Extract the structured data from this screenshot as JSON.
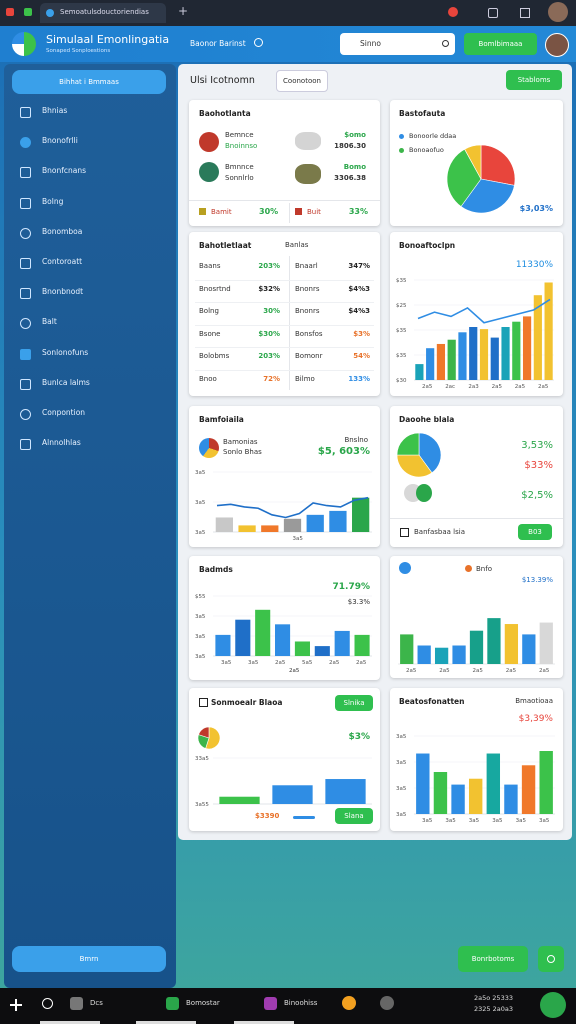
{
  "browser": {
    "tab_title": "Semoatulsdouctoriendias"
  },
  "header": {
    "title": "Simulaal Emonlingatia",
    "subtitle": "Sonaped Sonploestions",
    "nav_link": "Baonor Barinst",
    "search_placeholder": "Sinno",
    "button": "Bomlbimaaa"
  },
  "sidebar": {
    "top_button": "Bihhat i Bmmaas",
    "items": [
      "Bhnias",
      "Bnonofrlli",
      "Bnonfcnans",
      "Bolng",
      "Bonomboa",
      "Contoroatt",
      "Bnonbnodt",
      "Balt",
      "Sonlonofuns",
      "Bunlca lalms",
      "Conpontion",
      "Alnnolhlas"
    ],
    "bottom_button": "Bmrn"
  },
  "main": {
    "title": "Ulsi Icotnomn",
    "button_secondary": "Coonotoon",
    "button_primary": "Stabloms",
    "cards": [
      {
        "title": "Baohotlanta",
        "rows": [
          {
            "name": "Bemnce",
            "sub": "Bnoinnso",
            "value": "$omo",
            "value2": "1806.30"
          },
          {
            "name": "Bmnnce",
            "sub": "Sonnlrlo",
            "value": "Bomo",
            "value2": "3306.38"
          }
        ],
        "stats": [
          {
            "label": "Bamit",
            "value": "30%"
          },
          {
            "label": "Buit",
            "value": "33%"
          }
        ]
      },
      {
        "title": "Bastofauta",
        "legend": [
          "Bonoorle ddaa",
          "Bonoaofuo"
        ],
        "legend_colors": [
          "#2f8de4",
          "#3cb54a"
        ],
        "value": "$3,03%",
        "chart": {
          "pie": {
            "values": [
              28,
              32,
              32,
              8
            ],
            "colors": [
              "#e8453c",
              "#2f8de4",
              "#3cc24a",
              "#f2c230"
            ]
          }
        }
      },
      {
        "title": "Bahotletlaat",
        "header": "Banlas",
        "rows": [
          {
            "cells": [
              "Baans",
              "203%",
              "Bnaarl",
              "347%"
            ],
            "colors": [
              "#2aa64a",
              "#222"
            ]
          },
          {
            "cells": [
              "Bnosrtnd",
              "$32%",
              "Bnonrs",
              "$4%3"
            ],
            "colors": [
              "#222",
              "#222"
            ]
          },
          {
            "cells": [
              "Bolng",
              "30%",
              "Bnonrs",
              "$4%3"
            ],
            "colors": [
              "#2aa64a",
              "#222"
            ]
          },
          {
            "cells": [
              "Bsone",
              "$30%",
              "Bonsfos",
              "$3%"
            ],
            "colors": [
              "#2aa64a",
              "#e8722a"
            ]
          },
          {
            "cells": [
              "Bolobms",
              "203%",
              "Bomonr",
              "54%"
            ],
            "colors": [
              "#2aa64a",
              "#e8722a"
            ]
          },
          {
            "cells": [
              "Bnoo",
              "72%",
              "Bilmo",
              "133%"
            ],
            "colors": [
              "#e8722a",
              "#2f8de4"
            ]
          }
        ]
      },
      {
        "title": "Bonoaftoclpn",
        "value": "11330%",
        "chart": {
          "ylim": [
            0,
            100
          ],
          "ylabels": [
            "$35",
            "$25",
            "$35",
            "$35",
            "$30"
          ],
          "xlabels": [
            "2a5",
            "2ac",
            "2a3",
            "2a5",
            "2a5",
            "2a5"
          ],
          "bars": {
            "values": [
              15,
              30,
              34,
              38,
              45,
              50,
              48,
              40,
              50,
              55,
              60,
              80,
              92
            ],
            "colors": [
              "#1aa3b8",
              "#2f8de4",
              "#f0782a",
              "#3cb54a",
              "#2f8de4",
              "#1f6fc8",
              "#f2c230",
              "#1f6fc8",
              "#1aa3b8",
              "#3cc24a",
              "#f0782a",
              "#f2c230",
              "#f2c230"
            ]
          },
          "line": {
            "color": "#2f8de4",
            "values": [
              58,
              64,
              60,
              68,
              54,
              58,
              62,
              66,
              76
            ]
          }
        }
      },
      {
        "title": "Bamfoiaila",
        "legend": [
          "Bamonias",
          "Sonlo Bhas"
        ],
        "note": "Bnslno",
        "value": "$5, 603%",
        "chart": {
          "ylim": [
            0,
            100
          ],
          "ylabels": [
            "3a5",
            "3a5",
            "3a5"
          ],
          "xlabels": [
            "3a5"
          ],
          "bars": {
            "values": [
              22,
              10,
              10,
              20,
              26,
              32,
              52
            ],
            "colors": [
              "#c8c8c8",
              "#f2c230",
              "#f0782a",
              "#9a9a9a",
              "#2f8de4",
              "#2f8de4",
              "#2aa64a"
            ]
          },
          "line": {
            "color": "#1f6fc8",
            "values": [
              40,
              42,
              38,
              36,
              26,
              22,
              28,
              44,
              40,
              38,
              48,
              52
            ]
          }
        }
      },
      {
        "title": "Daoohe blala",
        "values": [
          "3,53%",
          "$33%",
          "$2,5%"
        ],
        "value_colors": [
          "#2aa64a",
          "#e8453c",
          "#2aa64a"
        ],
        "footer": "Banfasbaa lsia",
        "button": "B03",
        "chart": {
          "pie": {
            "values": [
              40,
              35,
              25
            ],
            "colors": [
              "#2f8de4",
              "#f2c230",
              "#3cc24a"
            ]
          }
        }
      },
      {
        "title": "Badmds",
        "value": "71.79%",
        "value2": "$3.3%",
        "note": "2a5",
        "chart": {
          "ylim": [
            0,
            100
          ],
          "ylabels": [
            "$55",
            "3a5",
            "3a5",
            "3a5"
          ],
          "xlabels": [
            "3a5",
            "3a5",
            "2a5",
            "5a5",
            "2a5",
            "2a5"
          ],
          "bars": {
            "values": [
              32,
              55,
              70,
              48,
              22,
              15,
              38,
              32
            ],
            "colors": [
              "#2f8de4",
              "#1f6fc8",
              "#3cc24a",
              "#2f8de4",
              "#3cc24a",
              "#1f6fc8",
              "#2f8de4",
              "#3cc24a"
            ]
          }
        }
      },
      {
        "title": "Bnfo",
        "value": "$13.39%",
        "chart": {
          "ylim": [
            0,
            100
          ],
          "xlabels": [
            "2a5",
            "2a5",
            "2a5",
            "2a5",
            "2a5"
          ],
          "bars": {
            "values": [
              40,
              25,
              22,
              25,
              45,
              62,
              54,
              40,
              56
            ],
            "colors": [
              "#3cb54a",
              "#2f8de4",
              "#1aa3b8",
              "#2f8de4",
              "#17a08a",
              "#17a08a",
              "#f2c230",
              "#2f8de4",
              "#d8d8d8"
            ]
          }
        }
      },
      {
        "title": "Sonmoealr Blaoa",
        "button": "Slnika",
        "value": "$3%",
        "value2": "$3390",
        "button2": "Slana",
        "pie": {
          "values": [
            55,
            25,
            20
          ],
          "colors": [
            "#f2c230",
            "#3cb54a",
            "#c0392b"
          ]
        },
        "chart": {
          "ylim": [
            0,
            100
          ],
          "ylabels": [
            "33a5",
            "3a55"
          ],
          "bars": {
            "values": [
              14,
              36,
              48
            ],
            "colors": [
              "#3cc24a",
              "#2f8de4",
              "#2f8de4"
            ]
          }
        }
      },
      {
        "title": "Beatosfonatten",
        "note": "Bmaotioaa",
        "value": "$3,39%",
        "chart": {
          "ylim": [
            0,
            100
          ],
          "ylabels": [
            "3a5",
            "3a5",
            "3a5",
            "3a5"
          ],
          "xlabels": [
            "3a5",
            "3a5",
            "3a5",
            "3a5",
            "3a5",
            "3a5"
          ],
          "bars": {
            "values": [
              72,
              50,
              35,
              42,
              72,
              35,
              58,
              75
            ],
            "colors": [
              "#2f8de4",
              "#3cc24a",
              "#2f8de4",
              "#f2c230",
              "#17a8a0",
              "#2f8de4",
              "#f0782a",
              "#3cc24a"
            ]
          }
        }
      }
    ]
  },
  "footer": {
    "button": "Bonrbotoms"
  },
  "taskbar": {
    "items": [
      "Dcs",
      "Bomostar",
      "Binoohiss"
    ],
    "clock": [
      "2a5o 25333",
      "2325 2a0a3"
    ]
  }
}
